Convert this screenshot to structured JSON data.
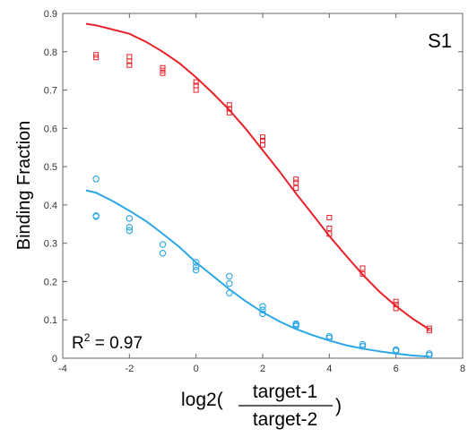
{
  "chart_data": {
    "type": "scatter",
    "xlim": [
      -4,
      8
    ],
    "ylim": [
      0,
      0.9
    ],
    "x_ticks": [
      -4,
      -2,
      0,
      2,
      4,
      6,
      8
    ],
    "y_ticks": [
      0,
      0.1,
      0.2,
      0.3,
      0.4,
      0.5,
      0.6,
      0.7,
      0.8,
      0.9
    ],
    "x_tick_labels": [
      "-4",
      "-2",
      "0",
      "2",
      "4",
      "6",
      "8"
    ],
    "y_tick_labels": [
      "0",
      "0.1",
      "0.2",
      "0.3",
      "0.4",
      "0.5",
      "0.6",
      "0.7",
      "0.8",
      "0.9"
    ],
    "ylabel": "Binding Fraction",
    "xlabel": {
      "prefix": "log2(",
      "numerator": "target-1",
      "denominator": "target-2",
      "suffix": ")"
    },
    "panel_label": "S1",
    "annotation": {
      "r2_prefix": "R",
      "r2_superscript": "2",
      "r2_value": " = 0.97"
    },
    "grid": false,
    "series": [
      {
        "marker": "square",
        "color": "#e8222a",
        "points": [
          [
            -3,
            0.785
          ],
          [
            -3,
            0.792
          ],
          [
            -2,
            0.765
          ],
          [
            -2,
            0.775
          ],
          [
            -2,
            0.787
          ],
          [
            -1,
            0.744
          ],
          [
            -1,
            0.751
          ],
          [
            -1,
            0.758
          ],
          [
            0,
            0.7
          ],
          [
            0,
            0.712
          ],
          [
            0,
            0.721
          ],
          [
            1,
            0.641
          ],
          [
            1,
            0.651
          ],
          [
            1,
            0.661
          ],
          [
            2,
            0.557
          ],
          [
            2,
            0.568
          ],
          [
            2,
            0.577
          ],
          [
            3,
            0.444
          ],
          [
            3,
            0.459
          ],
          [
            3,
            0.467
          ],
          [
            4,
            0.324
          ],
          [
            4,
            0.339
          ],
          [
            4,
            0.367
          ],
          [
            5,
            0.22
          ],
          [
            5,
            0.235
          ],
          [
            6,
            0.13
          ],
          [
            6,
            0.14
          ],
          [
            6,
            0.148
          ],
          [
            7,
            0.072
          ],
          [
            7,
            0.078
          ]
        ],
        "fit_curve": [
          [
            -3.3,
            0.873
          ],
          [
            -3,
            0.869
          ],
          [
            -2.5,
            0.858
          ],
          [
            -2,
            0.847
          ],
          [
            -1.5,
            0.826
          ],
          [
            -1,
            0.8
          ],
          [
            -0.5,
            0.77
          ],
          [
            0,
            0.733
          ],
          [
            0.5,
            0.692
          ],
          [
            1,
            0.648
          ],
          [
            1.5,
            0.598
          ],
          [
            2,
            0.543
          ],
          [
            2.5,
            0.488
          ],
          [
            3,
            0.43
          ],
          [
            3.5,
            0.375
          ],
          [
            4,
            0.319
          ],
          [
            4.5,
            0.268
          ],
          [
            5,
            0.218
          ],
          [
            5.5,
            0.174
          ],
          [
            6,
            0.136
          ],
          [
            6.5,
            0.103
          ],
          [
            7,
            0.075
          ]
        ]
      },
      {
        "marker": "circle",
        "color": "#2aa6e8",
        "points": [
          [
            -3,
            0.468
          ],
          [
            -3,
            0.37
          ],
          [
            -3,
            0.372
          ],
          [
            -2,
            0.365
          ],
          [
            -2,
            0.342
          ],
          [
            -2,
            0.333
          ],
          [
            -1,
            0.297
          ],
          [
            -1,
            0.274
          ],
          [
            0,
            0.25
          ],
          [
            0,
            0.239
          ],
          [
            0,
            0.23
          ],
          [
            1,
            0.214
          ],
          [
            1,
            0.195
          ],
          [
            1,
            0.17
          ],
          [
            2,
            0.135
          ],
          [
            2,
            0.126
          ],
          [
            2,
            0.116
          ],
          [
            3,
            0.09
          ],
          [
            3,
            0.087
          ],
          [
            3,
            0.084
          ],
          [
            4,
            0.057
          ],
          [
            4,
            0.053
          ],
          [
            5,
            0.036
          ],
          [
            5,
            0.031
          ],
          [
            6,
            0.022
          ],
          [
            6,
            0.019
          ],
          [
            7,
            0.012
          ],
          [
            7,
            0.008
          ]
        ],
        "fit_curve": [
          [
            -3.3,
            0.438
          ],
          [
            -3,
            0.432
          ],
          [
            -2.5,
            0.41
          ],
          [
            -2,
            0.385
          ],
          [
            -1.5,
            0.358
          ],
          [
            -1,
            0.325
          ],
          [
            -0.5,
            0.29
          ],
          [
            0,
            0.25
          ],
          [
            0.5,
            0.215
          ],
          [
            1,
            0.18
          ],
          [
            1.5,
            0.148
          ],
          [
            2,
            0.12
          ],
          [
            2.5,
            0.096
          ],
          [
            3,
            0.076
          ],
          [
            3.5,
            0.06
          ],
          [
            4,
            0.046
          ],
          [
            4.5,
            0.034
          ],
          [
            5,
            0.025
          ],
          [
            5.5,
            0.018
          ],
          [
            6,
            0.012
          ],
          [
            6.5,
            0.007
          ],
          [
            7,
            0.004
          ]
        ]
      }
    ]
  }
}
